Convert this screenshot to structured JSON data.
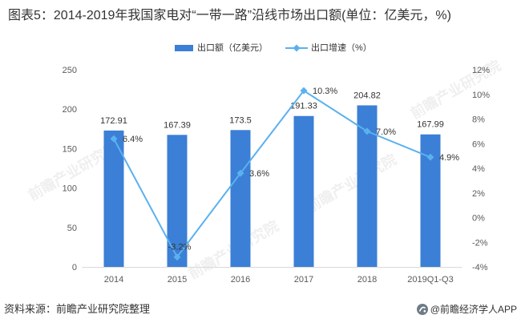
{
  "colors": {
    "bar": "#3b7fd6",
    "line": "#5ab1ee",
    "text": "#333333",
    "tick": "#595959",
    "axis": "#d9d9d9",
    "brand_logo": "#6f7b87"
  },
  "watermark": "前瞻产业研究院",
  "footer": {
    "source": "资料来源：前瞻产业研究院整理",
    "brand": "@前瞻经济学人APP"
  },
  "chart_data": {
    "type": "bar",
    "title": "图表5：2014-2019年我国家电对“一带一路”沿线市场出口额(单位：亿美元，%)",
    "xlabel": "",
    "ylabel": "",
    "grid": false,
    "categories": [
      "2014",
      "2015",
      "2016",
      "2017",
      "2018",
      "2019Q1-Q3"
    ],
    "ylim": [
      0,
      250
    ],
    "yticks": [
      0,
      50,
      100,
      150,
      200,
      250
    ],
    "y2lim": [
      -4,
      12
    ],
    "y2ticks": [
      -4,
      -2,
      0,
      2,
      4,
      6,
      8,
      10,
      12
    ],
    "y2tick_labels": [
      "-4%",
      "-2%",
      "0%",
      "2%",
      "4%",
      "6%",
      "8%",
      "10%",
      "12%"
    ],
    "series": [
      {
        "name": "出口额（亿美元）",
        "type": "bar",
        "values": [
          172.91,
          167.39,
          173.5,
          191.33,
          204.82,
          167.99
        ],
        "value_labels": [
          "172.91",
          "167.39",
          "173.5",
          "191.33",
          "204.82",
          "167.99"
        ]
      },
      {
        "name": "出口增速（%）",
        "type": "line",
        "values": [
          6.4,
          -3.2,
          3.6,
          10.3,
          7.0,
          4.9
        ],
        "value_labels": [
          "6.4%",
          "-3.2%",
          "3.6%",
          "10.3%",
          "7.0%",
          "4.9%"
        ]
      }
    ]
  }
}
